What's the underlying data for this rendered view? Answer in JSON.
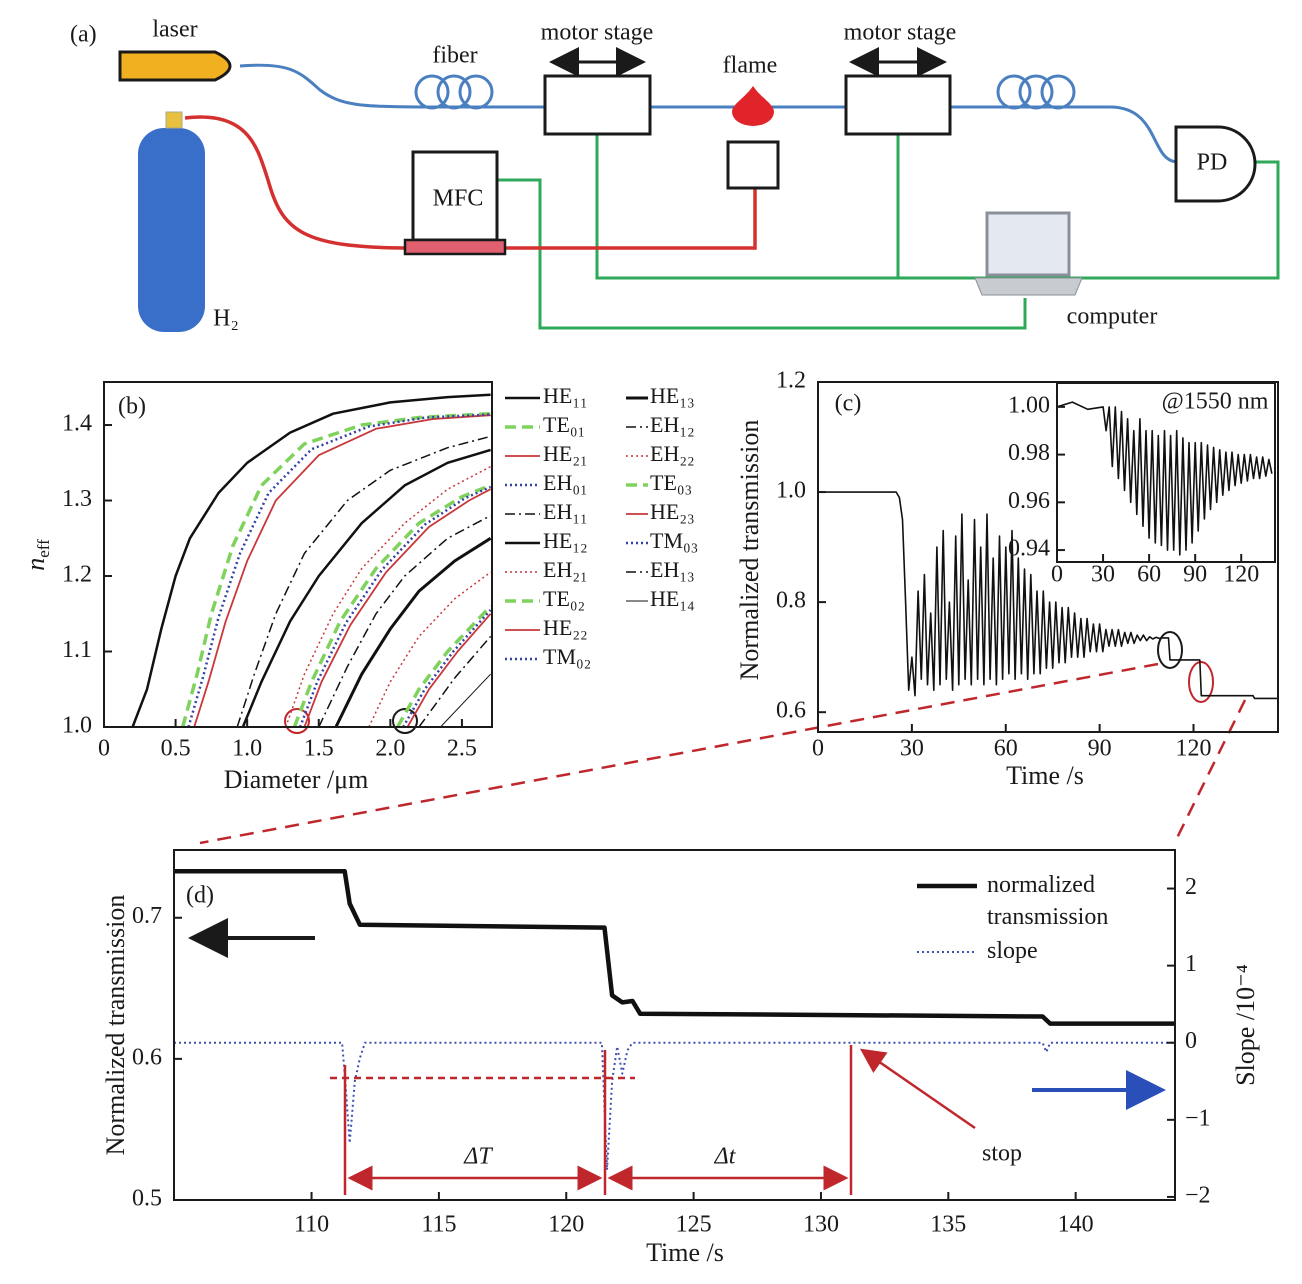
{
  "diagram": {
    "panel_label": "(a)",
    "laser": "laser",
    "fiber": "fiber",
    "motor_stage_left": "motor stage",
    "motor_stage_right": "motor stage",
    "flame": "flame",
    "mfc": "MFC",
    "pd": "PD",
    "gas": "H₂",
    "computer": "computer"
  },
  "chart_data": [
    {
      "type": "line",
      "panel_label": "(b)",
      "xlabel": "Diameter /μm",
      "ylabel": {
        "symbol": "n",
        "subscript": "eff"
      },
      "xlim": [
        0,
        2.71
      ],
      "ylim": [
        1.0,
        1.457
      ],
      "xticks": [
        0,
        0.5,
        {
          "value": 1,
          "label": "1.0"
        },
        1.5,
        {
          "value": 2,
          "label": "2.0"
        },
        2.5
      ],
      "yticks": [
        {
          "value": 1,
          "label": "1.0"
        },
        1.1,
        1.2,
        1.3,
        1.4
      ],
      "legend": "outside right",
      "series": [
        {
          "name": "HE₁₁",
          "color": "#111111",
          "dash": "solid",
          "width": 2.5,
          "x": [
            0.2,
            0.3,
            0.4,
            0.5,
            0.6,
            0.8,
            1.0,
            1.3,
            1.6,
            2.0,
            2.4,
            2.7
          ],
          "values": [
            1.0,
            1.05,
            1.13,
            1.2,
            1.25,
            1.31,
            1.35,
            1.39,
            1.415,
            1.43,
            1.437,
            1.44
          ]
        },
        {
          "name": "TE₀₁",
          "color": "#7fd35c",
          "dash": "dashed",
          "width": 3.5,
          "x": [
            0.55,
            0.65,
            0.75,
            0.9,
            1.1,
            1.4,
            1.8,
            2.2,
            2.7
          ],
          "values": [
            1.0,
            1.07,
            1.15,
            1.24,
            1.32,
            1.375,
            1.4,
            1.41,
            1.415
          ]
        },
        {
          "name": "HE₂₁",
          "color": "#c8373a",
          "dash": "solid",
          "width": 1.8,
          "x": [
            0.63,
            0.73,
            0.85,
            1.0,
            1.2,
            1.5,
            1.9,
            2.3,
            2.7
          ],
          "values": [
            1.0,
            1.06,
            1.14,
            1.22,
            1.3,
            1.36,
            1.395,
            1.408,
            1.413
          ]
        },
        {
          "name": "EH₀₁",
          "color": "#3340a8",
          "dash": "dotted",
          "width": 2.5,
          "x": [
            0.59,
            0.69,
            0.8,
            0.95,
            1.15,
            1.45,
            1.85,
            2.25,
            2.7
          ],
          "values": [
            1.0,
            1.065,
            1.145,
            1.23,
            1.31,
            1.368,
            1.398,
            1.41,
            1.414
          ]
        },
        {
          "name": "EH₁₁",
          "color": "#111111",
          "dash": "dashdot",
          "width": 1.5,
          "x": [
            0.93,
            1.05,
            1.2,
            1.4,
            1.7,
            2.0,
            2.4,
            2.7
          ],
          "values": [
            1.0,
            1.07,
            1.15,
            1.23,
            1.3,
            1.34,
            1.37,
            1.385
          ]
        },
        {
          "name": "HE₁₂",
          "color": "#111111",
          "dash": "solid",
          "width": 2.5,
          "x": [
            0.97,
            1.1,
            1.3,
            1.5,
            1.8,
            2.1,
            2.4,
            2.7
          ],
          "values": [
            1.0,
            1.06,
            1.14,
            1.2,
            1.27,
            1.32,
            1.35,
            1.367
          ]
        },
        {
          "name": "EH₂₁",
          "color": "#c8373a",
          "dash": "dotted",
          "width": 1.5,
          "x": [
            1.27,
            1.4,
            1.6,
            1.8,
            2.1,
            2.4,
            2.7
          ],
          "values": [
            1.0,
            1.07,
            1.15,
            1.21,
            1.27,
            1.315,
            1.345
          ]
        },
        {
          "name": "TE₀₂",
          "color": "#7fd35c",
          "dash": "dashed",
          "width": 3.5,
          "x": [
            1.33,
            1.45,
            1.65,
            1.9,
            2.2,
            2.5,
            2.7
          ],
          "values": [
            1.0,
            1.06,
            1.14,
            1.21,
            1.27,
            1.305,
            1.32
          ]
        },
        {
          "name": "HE₂₂",
          "color": "#c8373a",
          "dash": "solid",
          "width": 1.8,
          "x": [
            1.4,
            1.52,
            1.72,
            1.97,
            2.27,
            2.55,
            2.7
          ],
          "values": [
            1.0,
            1.06,
            1.135,
            1.205,
            1.265,
            1.3,
            1.315
          ]
        },
        {
          "name": "TM₀₂",
          "color": "#3340a8",
          "dash": "dotted",
          "width": 2.5,
          "x": [
            1.37,
            1.49,
            1.69,
            1.94,
            2.24,
            2.52,
            2.7
          ],
          "values": [
            1.0,
            1.06,
            1.138,
            1.208,
            1.268,
            1.303,
            1.318
          ]
        },
        {
          "name": "HE₁₃",
          "color": "#111111",
          "dash": "solid",
          "width": 3,
          "x": [
            1.62,
            1.8,
            2.0,
            2.2,
            2.45,
            2.7
          ],
          "values": [
            1.0,
            1.07,
            1.13,
            1.18,
            1.22,
            1.25
          ]
        },
        {
          "name": "EH₁₂",
          "color": "#111111",
          "dash": "dashdot",
          "width": 1.5,
          "x": [
            1.5,
            1.7,
            1.9,
            2.1,
            2.4,
            2.7
          ],
          "values": [
            1.0,
            1.08,
            1.15,
            1.2,
            1.25,
            1.28
          ]
        },
        {
          "name": "EH₂₂",
          "color": "#c8373a",
          "dash": "dotted",
          "width": 1.5,
          "x": [
            1.85,
            2.0,
            2.2,
            2.45,
            2.7
          ],
          "values": [
            1.0,
            1.06,
            1.12,
            1.17,
            1.205
          ]
        },
        {
          "name": "TE₀₃",
          "color": "#7fd35c",
          "dash": "dashed",
          "width": 3.5,
          "x": [
            2.05,
            2.2,
            2.4,
            2.7
          ],
          "values": [
            1.0,
            1.05,
            1.1,
            1.16
          ]
        },
        {
          "name": "HE₂₃",
          "color": "#c8373a",
          "dash": "solid",
          "width": 1.8,
          "x": [
            2.12,
            2.27,
            2.47,
            2.7
          ],
          "values": [
            1.0,
            1.05,
            1.1,
            1.15
          ]
        },
        {
          "name": "TM₀₃",
          "color": "#3340a8",
          "dash": "dotted",
          "width": 2.5,
          "x": [
            2.09,
            2.24,
            2.44,
            2.7
          ],
          "values": [
            1.0,
            1.05,
            1.1,
            1.155
          ]
        },
        {
          "name": "EH₁₃",
          "color": "#111111",
          "dash": "dashdot",
          "width": 1.5,
          "x": [
            2.2,
            2.45,
            2.7
          ],
          "values": [
            1.0,
            1.065,
            1.12
          ]
        },
        {
          "name": "HE₁₄",
          "color": "#111111",
          "dash": "solid",
          "width": 1,
          "x": [
            2.35,
            2.55,
            2.7
          ],
          "values": [
            1.0,
            1.04,
            1.07
          ]
        }
      ]
    },
    {
      "type": "line",
      "panel_label": "(c)",
      "xlabel": "Time /s",
      "ylabel": "Normalized transmission",
      "xlim": [
        0,
        147
      ],
      "ylim": [
        0.564,
        1.2
      ],
      "xticks": [
        0,
        30,
        60,
        90,
        120
      ],
      "yticks": [
        0.6,
        0.8,
        {
          "value": 1,
          "label": "1.0"
        },
        1.2
      ],
      "series": [
        {
          "color": "#111111",
          "dash": "solid",
          "width": 1.6,
          "x": [
            0,
            25,
            26,
            27,
            28,
            29,
            30,
            31,
            32,
            33,
            34,
            35,
            36,
            37,
            38,
            39,
            40,
            41,
            42,
            43,
            44,
            45,
            46,
            47,
            48,
            49,
            50,
            51,
            52,
            53,
            54,
            55,
            56,
            57,
            58,
            59,
            60,
            61,
            62,
            63,
            64,
            65,
            66,
            67,
            68,
            69,
            70,
            71,
            72,
            73,
            74,
            75,
            76,
            77,
            78,
            79,
            80,
            81,
            82,
            83,
            84,
            85,
            86,
            87,
            88,
            89,
            90,
            91,
            92,
            93,
            94,
            95,
            96,
            97,
            98,
            99,
            100,
            101,
            102,
            103,
            104,
            105,
            106,
            107,
            108,
            109,
            110,
            112,
            112.5,
            122,
            122.5,
            139,
            139.5,
            147
          ],
          "values": [
            1.0,
            1.0,
            0.99,
            0.95,
            0.8,
            0.64,
            0.7,
            0.63,
            0.82,
            0.66,
            0.85,
            0.65,
            0.78,
            0.64,
            0.9,
            0.65,
            0.93,
            0.66,
            0.8,
            0.64,
            0.92,
            0.65,
            0.96,
            0.66,
            0.84,
            0.65,
            0.95,
            0.66,
            0.9,
            0.65,
            0.96,
            0.66,
            0.88,
            0.65,
            0.92,
            0.66,
            0.9,
            0.67,
            0.93,
            0.66,
            0.88,
            0.67,
            0.86,
            0.66,
            0.85,
            0.67,
            0.82,
            0.67,
            0.82,
            0.68,
            0.8,
            0.68,
            0.8,
            0.69,
            0.79,
            0.69,
            0.79,
            0.7,
            0.78,
            0.7,
            0.77,
            0.7,
            0.77,
            0.71,
            0.76,
            0.71,
            0.76,
            0.71,
            0.75,
            0.72,
            0.75,
            0.72,
            0.75,
            0.72,
            0.745,
            0.725,
            0.745,
            0.725,
            0.74,
            0.73,
            0.74,
            0.73,
            0.737,
            0.733,
            0.736,
            0.734,
            0.735,
            0.735,
            0.695,
            0.695,
            0.63,
            0.63,
            0.625,
            0.625
          ]
        }
      ]
    },
    {
      "type": "line",
      "title": "@1550 nm",
      "xlim": [
        0,
        142
      ],
      "ylim": [
        0.935,
        1.01
      ],
      "xticks": [
        0,
        30,
        60,
        90,
        120
      ],
      "yticks": [
        {
          "value": 1,
          "label": "1.00"
        },
        0.98,
        0.96,
        0.94
      ],
      "series": [
        {
          "color": "#111111",
          "dash": "solid",
          "width": 1.6,
          "x": [
            0,
            10,
            20,
            30,
            32,
            34,
            36,
            38,
            40,
            42,
            44,
            46,
            48,
            50,
            52,
            54,
            56,
            58,
            60,
            62,
            64,
            66,
            68,
            70,
            72,
            74,
            76,
            78,
            80,
            82,
            84,
            86,
            88,
            90,
            92,
            94,
            96,
            98,
            100,
            102,
            104,
            106,
            108,
            110,
            112,
            114,
            116,
            118,
            120,
            122,
            124,
            126,
            128,
            130,
            132,
            134,
            136,
            138,
            140
          ],
          "values": [
            1.0,
            1.002,
            0.999,
            1.0,
            0.99,
            1.0,
            0.975,
            1.0,
            0.97,
            0.998,
            0.965,
            0.995,
            0.96,
            0.99,
            0.955,
            0.995,
            0.95,
            0.99,
            0.945,
            0.99,
            0.943,
            0.988,
            0.942,
            0.99,
            0.94,
            0.988,
            0.94,
            0.99,
            0.938,
            0.987,
            0.94,
            0.985,
            0.943,
            0.985,
            0.948,
            0.985,
            0.953,
            0.984,
            0.957,
            0.983,
            0.96,
            0.982,
            0.963,
            0.981,
            0.965,
            0.981,
            0.967,
            0.98,
            0.968,
            0.98,
            0.969,
            0.98,
            0.97,
            0.979,
            0.97,
            0.979,
            0.971,
            0.978,
            0.972
          ]
        }
      ]
    },
    {
      "type": "line",
      "panel_label": "(d)",
      "xlabel": "Time /s",
      "ylabel": "Normalized transmission",
      "y2label": "Slope /10⁻⁴",
      "xlim": [
        104.6,
        143.9
      ],
      "ylim": [
        0.5,
        0.748
      ],
      "y2lim": [
        -2.04,
        2.5
      ],
      "xticks": [
        110,
        115,
        120,
        125,
        130,
        135,
        140
      ],
      "yticks": [
        0.5,
        0.6,
        0.7
      ],
      "y2ticks": [
        {
          "value": -2,
          "label": "−2"
        },
        {
          "value": -1,
          "label": "−1"
        },
        0,
        1,
        2
      ],
      "legend": "upper right",
      "annotations": [
        "ΔT",
        "Δt",
        "stop"
      ],
      "series": [
        {
          "name": "normalized transmission",
          "color": "#111111",
          "dash": "solid",
          "width": 4.5,
          "x": [
            104.6,
            111.3,
            111.5,
            111.9,
            121.5,
            121.8,
            122.2,
            122.6,
            122.9,
            138.7,
            139.0,
            143.9
          ],
          "values": [
            0.733,
            0.733,
            0.71,
            0.695,
            0.693,
            0.645,
            0.64,
            0.641,
            0.632,
            0.63,
            0.625,
            0.625
          ]
        },
        {
          "name": "slope",
          "color": "#4050b0",
          "dash": "dotted",
          "width": 2,
          "axis": "y2",
          "x": [
            104.6,
            111.2,
            111.35,
            111.5,
            111.7,
            111.9,
            112.1,
            121.4,
            121.6,
            121.8,
            122.0,
            122.2,
            122.4,
            122.6,
            138.7,
            138.85,
            139.0,
            143.9
          ],
          "values": [
            0,
            0,
            -0.6,
            -1.3,
            -0.5,
            -0.2,
            0,
            0,
            -1.65,
            -0.5,
            -0.05,
            -0.4,
            -0.1,
            0,
            0,
            -0.12,
            0,
            0
          ]
        }
      ]
    }
  ]
}
